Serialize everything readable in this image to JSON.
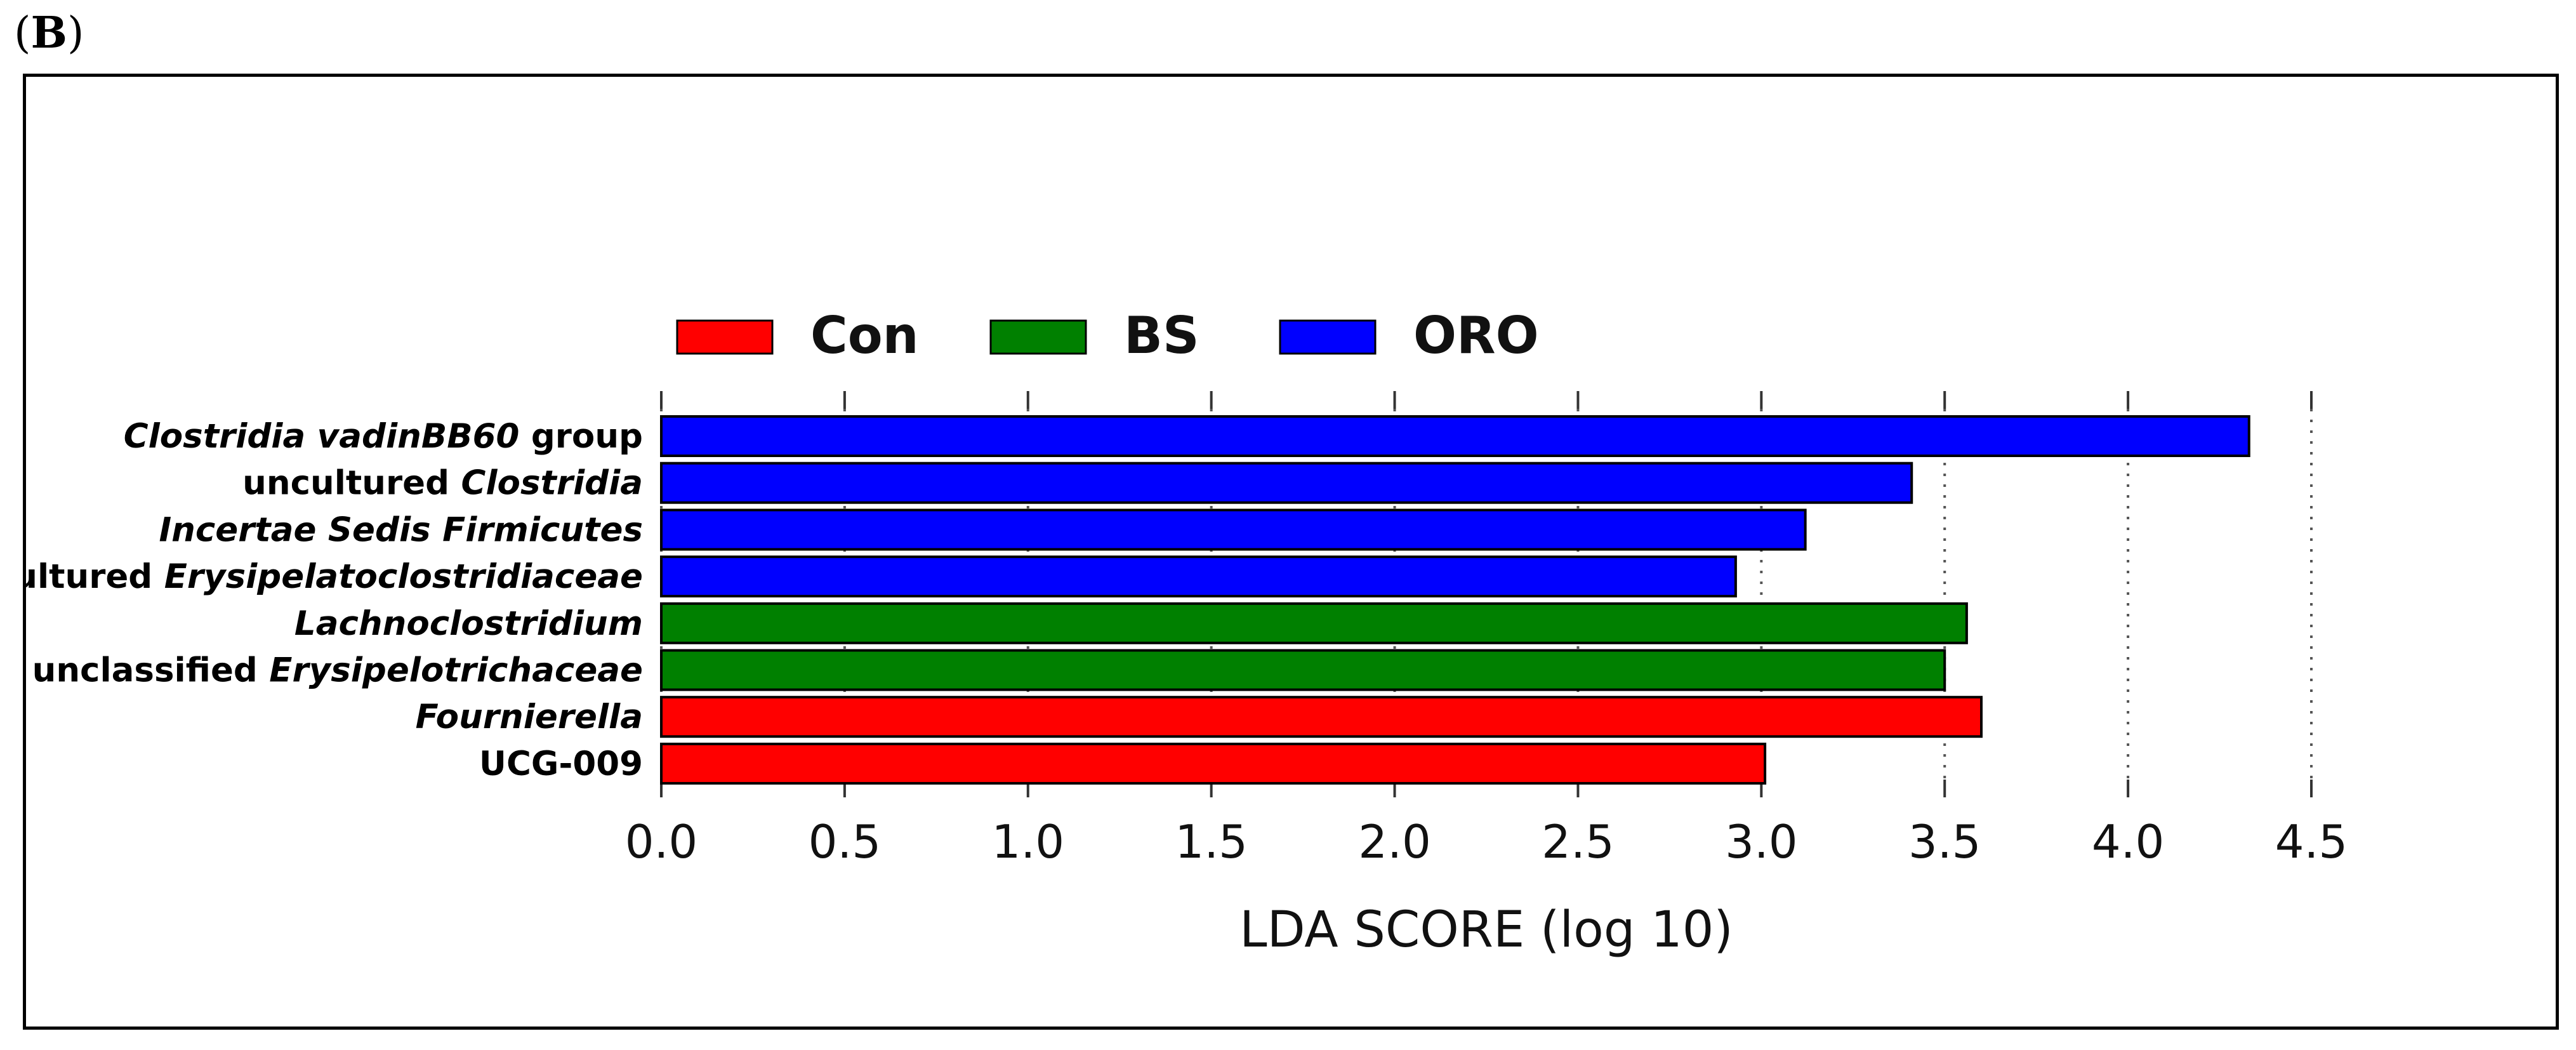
{
  "panel_label": {
    "open": "(",
    "letter": "B",
    "close": ")"
  },
  "chart_data": {
    "type": "bar",
    "orientation": "horizontal",
    "xlabel": "LDA SCORE (log 10)",
    "xlim": [
      0,
      4.5
    ],
    "xticks": [
      "0.0",
      "0.5",
      "1.0",
      "1.5",
      "2.0",
      "2.5",
      "3.0",
      "3.5",
      "4.0",
      "4.5"
    ],
    "grid": "vertical dotted",
    "legend": {
      "placement": "top-left",
      "entries": [
        {
          "name": "Con",
          "color": "#ff0000"
        },
        {
          "name": "BS",
          "color": "#008000"
        },
        {
          "name": "ORO",
          "color": "#0000ff"
        }
      ]
    },
    "bars": [
      {
        "parts": [
          {
            "text": "Clostridia vadinBB60",
            "italic": true
          },
          {
            "text": " group",
            "italic": false
          }
        ],
        "value": 4.33,
        "group": "ORO"
      },
      {
        "parts": [
          {
            "text": "uncultured ",
            "italic": false
          },
          {
            "text": "Clostridia",
            "italic": true
          }
        ],
        "value": 3.41,
        "group": "ORO"
      },
      {
        "parts": [
          {
            "text": "Incertae Sedis Firmicutes",
            "italic": true
          }
        ],
        "value": 3.12,
        "group": "ORO"
      },
      {
        "parts": [
          {
            "text": "uncultured ",
            "italic": false
          },
          {
            "text": "Erysipelatoclostridiaceae",
            "italic": true
          }
        ],
        "value": 2.93,
        "group": "ORO"
      },
      {
        "parts": [
          {
            "text": "Lachnoclostridium",
            "italic": true
          }
        ],
        "value": 3.56,
        "group": "BS"
      },
      {
        "parts": [
          {
            "text": "unclassified ",
            "italic": false
          },
          {
            "text": "Erysipelotrichaceae",
            "italic": true
          }
        ],
        "value": 3.5,
        "group": "BS"
      },
      {
        "parts": [
          {
            "text": "Fournierella",
            "italic": true
          }
        ],
        "value": 3.6,
        "group": "Con"
      },
      {
        "parts": [
          {
            "text": "UCG-009",
            "italic": false
          }
        ],
        "value": 3.01,
        "group": "Con"
      }
    ]
  }
}
